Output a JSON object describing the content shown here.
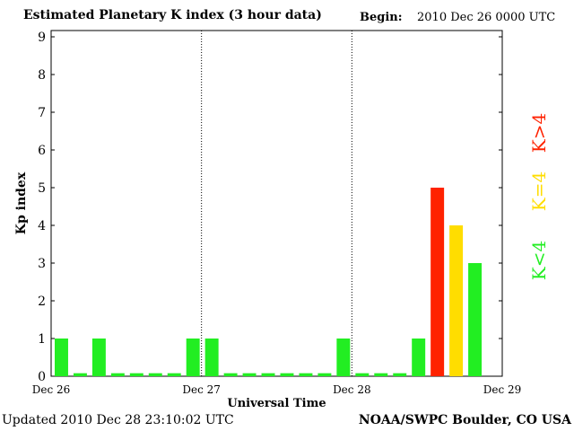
{
  "header": {
    "title": "Estimated Planetary K index (3 hour data)",
    "begin_label": "Begin:",
    "begin_value": "2010 Dec 26 0000 UTC"
  },
  "footer": {
    "updated_label": "Updated",
    "updated_value": "2010 Dec 28 23:10:02 UTC",
    "source": "NOAA/SWPC Boulder, CO USA"
  },
  "legend": {
    "items": [
      {
        "label": "K<4",
        "color": "#22ee22"
      },
      {
        "label": "K=4",
        "color": "#ffdd00"
      },
      {
        "label": "K>4",
        "color": "#ff2200"
      }
    ]
  },
  "colors": {
    "low": "#22ee22",
    "moderate": "#ffdd00",
    "high": "#ff2200"
  },
  "chart_data": {
    "type": "bar",
    "title": "Estimated Planetary K index (3 hour data)",
    "xlabel": "Universal Time",
    "ylabel": "Kp index",
    "ylim": [
      0,
      9
    ],
    "yticks": [
      0,
      1,
      2,
      3,
      4,
      5,
      6,
      7,
      8,
      9
    ],
    "xtick_labels": [
      "Dec 26",
      "Dec 27",
      "Dec 28",
      "Dec 29"
    ],
    "bins_per_day": 8,
    "day_separators": "dotted",
    "grid": false,
    "values": [
      1,
      0,
      1,
      0,
      0,
      0,
      0,
      1,
      1,
      0,
      0,
      0,
      0,
      0,
      0,
      1,
      0,
      0,
      0,
      1,
      5,
      4,
      3
    ]
  }
}
